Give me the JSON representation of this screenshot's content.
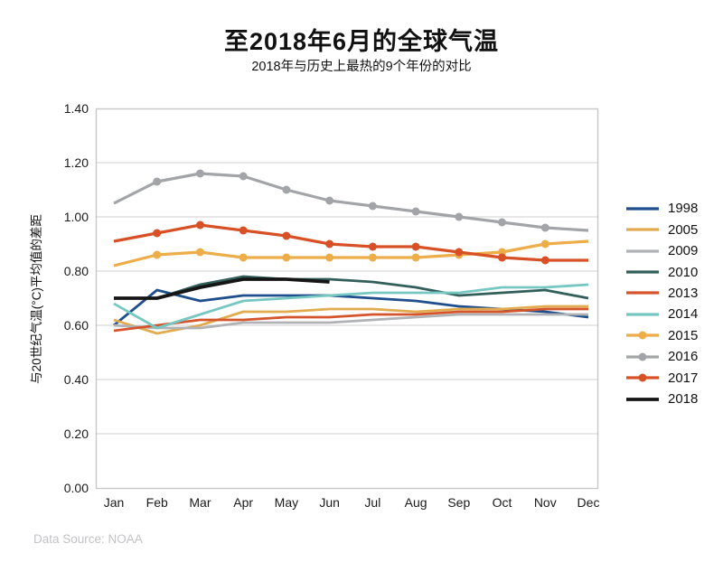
{
  "page": {
    "title": "至2018年6月的全球气温",
    "subtitle": "2018年与历史上最热的9个年份的对比",
    "source_note": "Data Source: NOAA"
  },
  "chart_data": {
    "type": "line",
    "title": "至2018年6月的全球气温",
    "subtitle": "2018年与历史上最热的9个年份的对比",
    "xlabel": "",
    "ylabel": "与20世纪气温(°C)平均值的差距",
    "x_categories": [
      "Jan",
      "Feb",
      "Mar",
      "Apr",
      "May",
      "Jun",
      "Jul",
      "Aug",
      "Sep",
      "Oct",
      "Nov",
      "Dec"
    ],
    "ylim": [
      0.0,
      1.4
    ],
    "ytick_labels": [
      "0.00",
      "0.20",
      "0.40",
      "0.60",
      "0.80",
      "1.00",
      "1.20",
      "1.40"
    ],
    "grid": "horizontal-only",
    "gridline_color": "#dadadb",
    "plot_border_color": "#c8c8ca",
    "legend_position": "right",
    "unit": "°C anomaly vs 20th-century average",
    "series": [
      {
        "name": "1998",
        "color": "#1f4e8c",
        "marker": false,
        "values": [
          0.6,
          0.73,
          0.69,
          0.71,
          0.71,
          0.71,
          0.7,
          0.69,
          0.67,
          0.66,
          0.65,
          0.63
        ]
      },
      {
        "name": "2005",
        "color": "#e2ab4f",
        "marker": false,
        "values": [
          0.62,
          0.57,
          0.6,
          0.65,
          0.65,
          0.66,
          0.66,
          0.65,
          0.66,
          0.66,
          0.67,
          0.67
        ]
      },
      {
        "name": "2009",
        "color": "#b0b2b5",
        "marker": false,
        "values": [
          0.6,
          0.59,
          0.59,
          0.61,
          0.61,
          0.61,
          0.62,
          0.63,
          0.64,
          0.64,
          0.64,
          0.64
        ]
      },
      {
        "name": "2010",
        "color": "#335f5b",
        "marker": false,
        "values": [
          0.7,
          0.7,
          0.75,
          0.78,
          0.77,
          0.77,
          0.76,
          0.74,
          0.71,
          0.72,
          0.73,
          0.7
        ]
      },
      {
        "name": "2013",
        "color": "#d4552c",
        "marker": false,
        "values": [
          0.58,
          0.6,
          0.62,
          0.62,
          0.63,
          0.63,
          0.64,
          0.64,
          0.65,
          0.65,
          0.66,
          0.66
        ]
      },
      {
        "name": "2014",
        "color": "#76c7c1",
        "marker": false,
        "values": [
          0.68,
          0.59,
          0.64,
          0.69,
          0.7,
          0.71,
          0.72,
          0.72,
          0.72,
          0.74,
          0.74,
          0.75
        ]
      },
      {
        "name": "2015",
        "color": "#edad49",
        "marker": true,
        "values": [
          0.82,
          0.86,
          0.87,
          0.85,
          0.85,
          0.85,
          0.85,
          0.85,
          0.86,
          0.87,
          0.9,
          0.91
        ]
      },
      {
        "name": "2016",
        "color": "#a2a4a7",
        "marker": true,
        "values": [
          1.05,
          1.13,
          1.16,
          1.15,
          1.1,
          1.06,
          1.04,
          1.02,
          1.0,
          0.98,
          0.96,
          0.95
        ]
      },
      {
        "name": "2017",
        "color": "#d85026",
        "marker": true,
        "values": [
          0.91,
          0.94,
          0.97,
          0.95,
          0.93,
          0.9,
          0.89,
          0.89,
          0.87,
          0.85,
          0.84,
          0.84
        ]
      },
      {
        "name": "2018",
        "color": "#161616",
        "marker": false,
        "thick": true,
        "values": [
          0.7,
          0.7,
          0.74,
          0.77,
          0.77,
          0.76
        ]
      }
    ]
  }
}
